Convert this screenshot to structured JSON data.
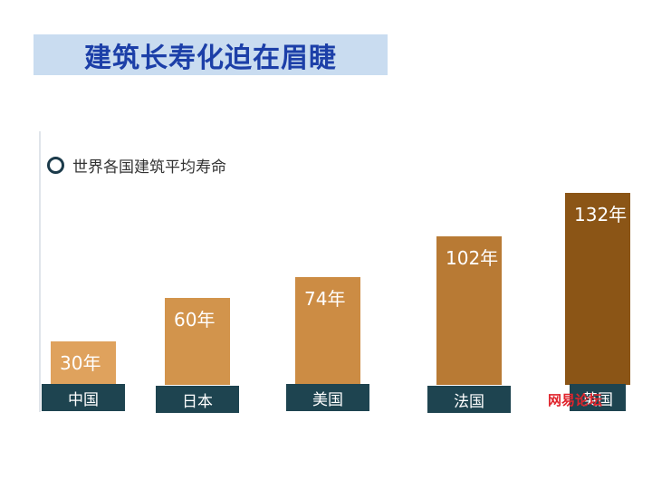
{
  "slide_title": "建筑长寿化迫在眉睫",
  "chart_data": {
    "type": "bar",
    "title": "世界各国建筑平均寿命",
    "unit": "年",
    "categories": [
      "中国",
      "日本",
      "美国",
      "法国",
      "英国"
    ],
    "values": [
      30,
      60,
      74,
      102,
      132
    ],
    "data_labels": [
      "30年",
      "60年",
      "74年",
      "102年",
      "132年"
    ],
    "colors": [
      "#dfa25d",
      "#d2944c",
      "#cc8c44",
      "#b87a34",
      "#8b5516"
    ],
    "category_box_color": "#1e4450",
    "ylim": [
      0,
      140
    ],
    "grid": false
  },
  "watermark": {
    "text": "网易论坛"
  }
}
